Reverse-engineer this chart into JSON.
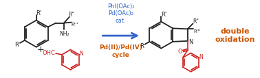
{
  "background_color": "#ffffff",
  "arrow_color": "#3366cc",
  "above_arrow_lines": [
    "PhI(OAc)₂",
    "Pd(OAc)₂",
    "cat."
  ],
  "below_arrow_lines": [
    "Pd(II)/Pd(IV)",
    "cycle"
  ],
  "above_arrow_color": "#3366cc",
  "below_arrow_color": "#cc5500",
  "double_oxidation_text": "double\noxidation",
  "double_oxidation_color": "#cc5500",
  "red_color": "#cc2222",
  "black_color": "#222222",
  "figsize": [
    3.78,
    1.15
  ],
  "dpi": 100
}
